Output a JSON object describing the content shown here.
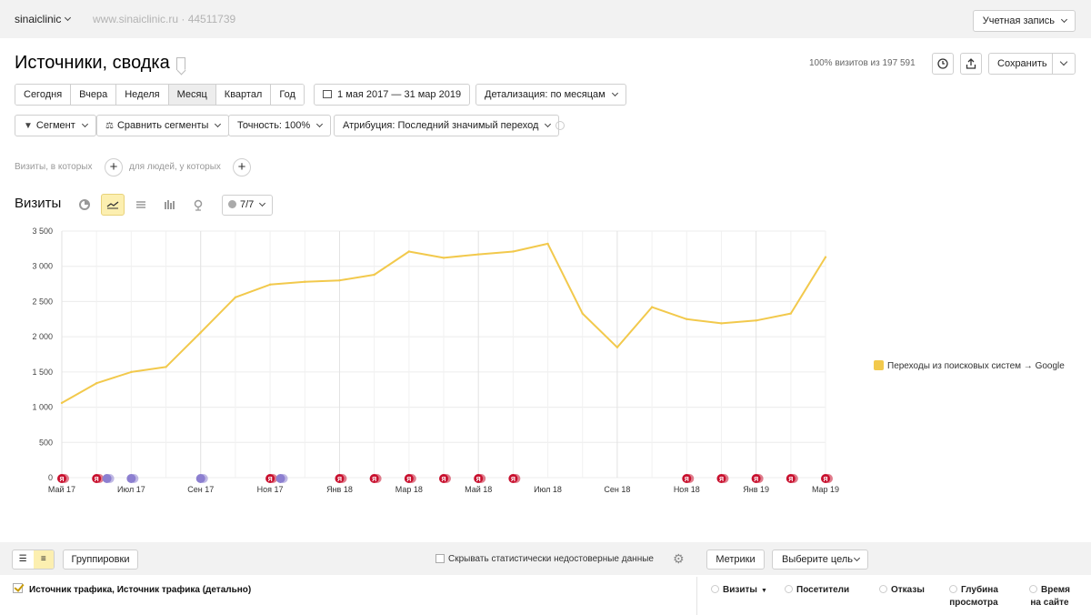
{
  "header": {
    "site_name": "sinaiclinic",
    "site_url": "www.sinaiclinic.ru · 44511739",
    "account_label": "Учетная запись"
  },
  "report": {
    "title": "Источники, сводка",
    "visits_percent": "100% визитов из 197 591",
    "save_label": "Сохранить"
  },
  "period": {
    "tabs": [
      "Сегодня",
      "Вчера",
      "Неделя",
      "Месяц",
      "Квартал",
      "Год"
    ],
    "active_tab": "Месяц",
    "date_range": "1 мая 2017 — 31 мар 2019",
    "detail": "Детализация: по месяцам"
  },
  "filters": {
    "segment": "Сегмент",
    "compare": "Сравнить сегменты",
    "accuracy": "Точность: 100%",
    "attribution": "Атрибуция: Последний значимый переход"
  },
  "segment_builder": {
    "visits_where": "Визиты, в которых",
    "people_where": "для людей, у которых"
  },
  "chart_header": {
    "title": "Визиты",
    "chart_types": [
      "pie-chart-icon",
      "line-chart-icon",
      "area-chart-icon",
      "bar-chart-icon",
      "map-pin-icon"
    ],
    "active_type": "line-chart-icon",
    "notes_label": "7/7"
  },
  "chart_data": {
    "type": "line",
    "title": "",
    "xlabel": "",
    "ylabel": "",
    "x": [
      "2017-05",
      "2017-06",
      "2017-07",
      "2017-08",
      "2017-09",
      "2017-10",
      "2017-11",
      "2017-12",
      "2018-01",
      "2018-02",
      "2018-03",
      "2018-04",
      "2018-05",
      "2018-06",
      "2018-07",
      "2018-08",
      "2018-09",
      "2018-10",
      "2018-11",
      "2018-12",
      "2019-01",
      "2019-02",
      "2019-03"
    ],
    "x_tick_labels": [
      "Май 17",
      "Июл 17",
      "Сен 17",
      "Ноя 17",
      "Янв 18",
      "Мар 18",
      "Май 18",
      "Июл 18",
      "Сен 18",
      "Ноя 18",
      "Янв 19",
      "Мар 19"
    ],
    "ylim": [
      0,
      3500
    ],
    "y_ticks": [
      "0",
      "500",
      "1 000",
      "1 500",
      "2 000",
      "2 500",
      "3 000",
      "3 500"
    ],
    "grid": true,
    "legend_position": "right",
    "series": [
      {
        "name": "Переходы из поисковых систем → Google",
        "color": "#f2c94c",
        "values": [
          1060,
          1340,
          1500,
          1570,
          2060,
          2560,
          2740,
          2780,
          2800,
          2880,
          3210,
          3120,
          3170,
          3210,
          3320,
          2330,
          1850,
          2420,
          2250,
          2190,
          2230,
          2330,
          3130
        ]
      }
    ],
    "annotations": [
      {
        "month_index": 0,
        "label": "Я",
        "color": "#c8102e"
      },
      {
        "month_index": 1,
        "label": "Я",
        "color": "#c8102e"
      },
      {
        "month_index": 1.3,
        "label": "",
        "color": "#8c7fd0"
      },
      {
        "month_index": 2,
        "label": "",
        "color": "#8c7fd0"
      },
      {
        "month_index": 4,
        "label": "",
        "color": "#8c7fd0"
      },
      {
        "month_index": 6,
        "label": "Я",
        "color": "#c8102e"
      },
      {
        "month_index": 6.3,
        "label": "",
        "color": "#8c7fd0"
      },
      {
        "month_index": 8,
        "label": "Я",
        "color": "#c8102e"
      },
      {
        "month_index": 9,
        "label": "Я",
        "color": "#c8102e"
      },
      {
        "month_index": 10,
        "label": "Я",
        "color": "#c8102e"
      },
      {
        "month_index": 11,
        "label": "Я",
        "color": "#c8102e"
      },
      {
        "month_index": 12,
        "label": "Я",
        "color": "#c8102e"
      },
      {
        "month_index": 13,
        "label": "Я",
        "color": "#c8102e"
      },
      {
        "month_index": 18,
        "label": "Я",
        "color": "#c8102e"
      },
      {
        "month_index": 19,
        "label": "Я",
        "color": "#c8102e"
      },
      {
        "month_index": 20,
        "label": "Я",
        "color": "#c8102e"
      },
      {
        "month_index": 21,
        "label": "Я",
        "color": "#c8102e"
      },
      {
        "month_index": 22,
        "label": "Я",
        "color": "#c8102e"
      }
    ]
  },
  "table_toolbar": {
    "groupings": "Группировки",
    "hide_unreliable": "Скрывать статистически недостоверные данные",
    "metrics": "Метрики",
    "choose_goal": "Выберите цель"
  },
  "table_header": {
    "dimensions": "Источник трафика, Источник трафика (детально)",
    "columns": [
      {
        "line1": "Визиты",
        "line2": ""
      },
      {
        "line1": "Посетители",
        "line2": ""
      },
      {
        "line1": "Отказы",
        "line2": ""
      },
      {
        "line1": "Глубина",
        "line2": "просмотра"
      },
      {
        "line1": "Время",
        "line2": "на сайте"
      }
    ]
  }
}
